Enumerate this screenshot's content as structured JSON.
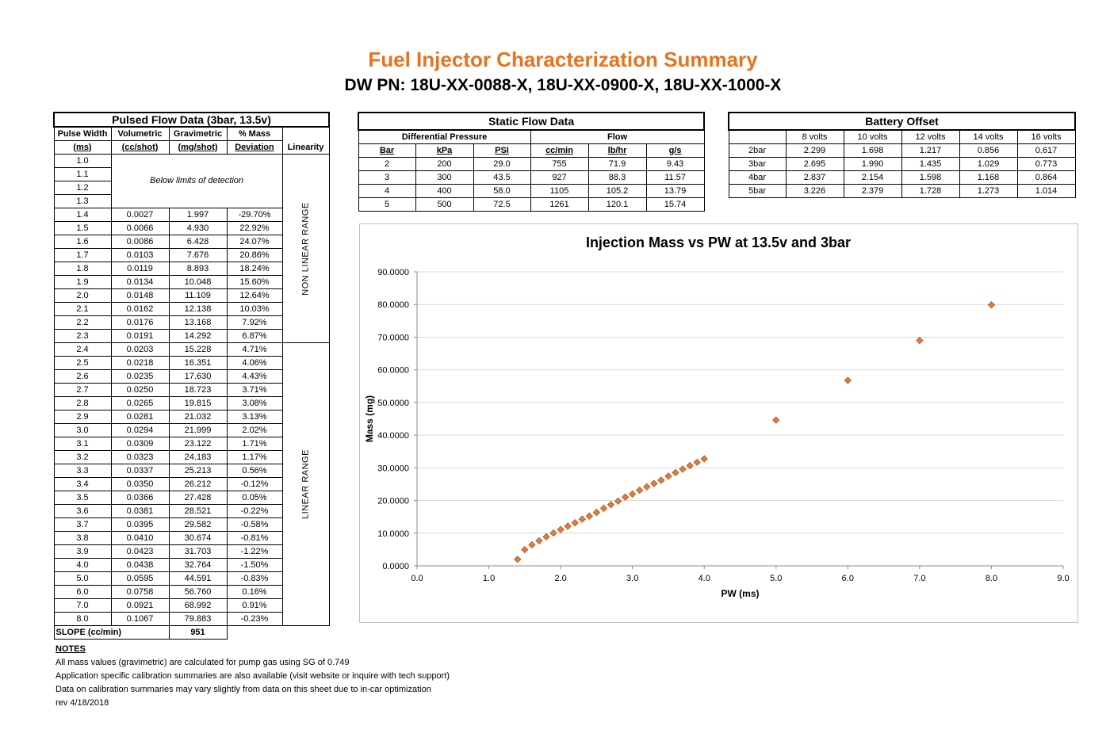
{
  "title": "Fuel Injector Characterization Summary",
  "subtitle": "DW PN: 18U-XX-0088-X, 18U-XX-0900-X, 18U-XX-1000-X",
  "pulsed": {
    "title": "Pulsed Flow Data (3bar, 13.5v)",
    "headers": {
      "pw1": "Pulse Width",
      "pw2": "(ms)",
      "vol1": "Volumetric",
      "vol2": "(cc/shot)",
      "grav1": "Gravimetric",
      "grav2": "(mg/shot)",
      "dev1": "% Mass",
      "dev2": "Deviation",
      "lin": "Linearity"
    },
    "below_limits": "Below limits of detection",
    "nonlinear_label": "NON LINEAR RANGE",
    "linear_label": "LINEAR RANGE",
    "rows": [
      {
        "pw": "1.0",
        "vol": "",
        "grav": "",
        "dev": ""
      },
      {
        "pw": "1.1",
        "vol": "",
        "grav": "",
        "dev": ""
      },
      {
        "pw": "1.2",
        "vol": "",
        "grav": "",
        "dev": ""
      },
      {
        "pw": "1.3",
        "vol": "",
        "grav": "",
        "dev": ""
      },
      {
        "pw": "1.4",
        "vol": "0.0027",
        "grav": "1.997",
        "dev": "-29.70%"
      },
      {
        "pw": "1.5",
        "vol": "0.0066",
        "grav": "4.930",
        "dev": "22.92%"
      },
      {
        "pw": "1.6",
        "vol": "0.0086",
        "grav": "6.428",
        "dev": "24.07%"
      },
      {
        "pw": "1.7",
        "vol": "0.0103",
        "grav": "7.676",
        "dev": "20.86%"
      },
      {
        "pw": "1.8",
        "vol": "0.0119",
        "grav": "8.893",
        "dev": "18.24%"
      },
      {
        "pw": "1.9",
        "vol": "0.0134",
        "grav": "10.048",
        "dev": "15.60%"
      },
      {
        "pw": "2.0",
        "vol": "0.0148",
        "grav": "11.109",
        "dev": "12.64%"
      },
      {
        "pw": "2.1",
        "vol": "0.0162",
        "grav": "12.138",
        "dev": "10.03%"
      },
      {
        "pw": "2.2",
        "vol": "0.0176",
        "grav": "13.168",
        "dev": "7.92%"
      },
      {
        "pw": "2.3",
        "vol": "0.0191",
        "grav": "14.292",
        "dev": "6.87%"
      },
      {
        "pw": "2.4",
        "vol": "0.0203",
        "grav": "15.228",
        "dev": "4.71%"
      },
      {
        "pw": "2.5",
        "vol": "0.0218",
        "grav": "16.351",
        "dev": "4.06%"
      },
      {
        "pw": "2.6",
        "vol": "0.0235",
        "grav": "17.630",
        "dev": "4.43%"
      },
      {
        "pw": "2.7",
        "vol": "0.0250",
        "grav": "18.723",
        "dev": "3.71%"
      },
      {
        "pw": "2.8",
        "vol": "0.0265",
        "grav": "19.815",
        "dev": "3.08%"
      },
      {
        "pw": "2.9",
        "vol": "0.0281",
        "grav": "21.032",
        "dev": "3.13%"
      },
      {
        "pw": "3.0",
        "vol": "0.0294",
        "grav": "21.999",
        "dev": "2.02%"
      },
      {
        "pw": "3.1",
        "vol": "0.0309",
        "grav": "23.122",
        "dev": "1.71%"
      },
      {
        "pw": "3.2",
        "vol": "0.0323",
        "grav": "24.183",
        "dev": "1.17%"
      },
      {
        "pw": "3.3",
        "vol": "0.0337",
        "grav": "25.213",
        "dev": "0.56%"
      },
      {
        "pw": "3.4",
        "vol": "0.0350",
        "grav": "26.212",
        "dev": "-0.12%"
      },
      {
        "pw": "3.5",
        "vol": "0.0366",
        "grav": "27.428",
        "dev": "0.05%"
      },
      {
        "pw": "3.6",
        "vol": "0.0381",
        "grav": "28.521",
        "dev": "-0.22%"
      },
      {
        "pw": "3.7",
        "vol": "0.0395",
        "grav": "29.582",
        "dev": "-0.58%"
      },
      {
        "pw": "3.8",
        "vol": "0.0410",
        "grav": "30.674",
        "dev": "-0.81%"
      },
      {
        "pw": "3.9",
        "vol": "0.0423",
        "grav": "31.703",
        "dev": "-1.22%"
      },
      {
        "pw": "4.0",
        "vol": "0.0438",
        "grav": "32.764",
        "dev": "-1.50%"
      },
      {
        "pw": "5.0",
        "vol": "0.0595",
        "grav": "44.591",
        "dev": "-0.83%"
      },
      {
        "pw": "6.0",
        "vol": "0.0758",
        "grav": "56.760",
        "dev": "0.16%"
      },
      {
        "pw": "7.0",
        "vol": "0.0921",
        "grav": "68.992",
        "dev": "0.91%"
      },
      {
        "pw": "8.0",
        "vol": "0.1067",
        "grav": "79.883",
        "dev": "-0.23%"
      }
    ],
    "slope_label": "SLOPE (cc/min)",
    "slope_value": "951"
  },
  "static": {
    "title": "Static Flow Data",
    "group1": "Differential Pressure",
    "group2": "Flow",
    "headers": [
      "Bar",
      "kPa",
      "PSI",
      "cc/min",
      "lb/hr",
      "g/s"
    ],
    "rows": [
      [
        "2",
        "200",
        "29.0",
        "755",
        "71.9",
        "9.43"
      ],
      [
        "3",
        "300",
        "43.5",
        "927",
        "88.3",
        "11.57"
      ],
      [
        "4",
        "400",
        "58.0",
        "1105",
        "105.2",
        "13.79"
      ],
      [
        "5",
        "500",
        "72.5",
        "1261",
        "120.1",
        "15.74"
      ]
    ]
  },
  "battery": {
    "title": "Battery Offset",
    "headers": [
      "",
      "8 volts",
      "10 volts",
      "12 volts",
      "14 volts",
      "16 volts"
    ],
    "rows": [
      [
        "2bar",
        "2.299",
        "1.698",
        "1.217",
        "0.856",
        "0.617"
      ],
      [
        "3bar",
        "2.695",
        "1.990",
        "1.435",
        "1.029",
        "0.773"
      ],
      [
        "4bar",
        "2.837",
        "2.154",
        "1.598",
        "1.168",
        "0.864"
      ],
      [
        "5bar",
        "3.226",
        "2.379",
        "1.728",
        "1.273",
        "1.014"
      ]
    ]
  },
  "chart_data": {
    "type": "scatter",
    "title": "Injection Mass vs PW at 13.5v and 3bar",
    "xlabel": "PW (ms)",
    "ylabel": "Mass (mg)",
    "xlim": [
      0,
      9
    ],
    "ylim": [
      0,
      90
    ],
    "x_ticks": [
      "0.0",
      "1.0",
      "2.0",
      "3.0",
      "4.0",
      "5.0",
      "6.0",
      "7.0",
      "8.0",
      "9.0"
    ],
    "y_ticks": [
      "0.0000",
      "10.0000",
      "20.0000",
      "30.0000",
      "40.0000",
      "50.0000",
      "60.0000",
      "70.0000",
      "80.0000",
      "90.0000"
    ],
    "grid": "horizontal",
    "marker_color": "#E07B39",
    "points": [
      [
        1.4,
        1.997
      ],
      [
        1.5,
        4.93
      ],
      [
        1.6,
        6.428
      ],
      [
        1.7,
        7.676
      ],
      [
        1.8,
        8.893
      ],
      [
        1.9,
        10.048
      ],
      [
        2.0,
        11.109
      ],
      [
        2.1,
        12.138
      ],
      [
        2.2,
        13.168
      ],
      [
        2.3,
        14.292
      ],
      [
        2.4,
        15.228
      ],
      [
        2.5,
        16.351
      ],
      [
        2.6,
        17.63
      ],
      [
        2.7,
        18.723
      ],
      [
        2.8,
        19.815
      ],
      [
        2.9,
        21.032
      ],
      [
        3.0,
        21.999
      ],
      [
        3.1,
        23.122
      ],
      [
        3.2,
        24.183
      ],
      [
        3.3,
        25.213
      ],
      [
        3.4,
        26.212
      ],
      [
        3.5,
        27.428
      ],
      [
        3.6,
        28.521
      ],
      [
        3.7,
        29.582
      ],
      [
        3.8,
        30.674
      ],
      [
        3.9,
        31.703
      ],
      [
        4.0,
        32.764
      ],
      [
        5.0,
        44.591
      ],
      [
        6.0,
        56.76
      ],
      [
        7.0,
        68.992
      ],
      [
        8.0,
        79.883
      ]
    ]
  },
  "notes": {
    "heading": "NOTES",
    "lines": [
      "All mass values (gravimetric) are calculated for pump gas using SG of 0.749",
      "Application specific calibration summaries are also available (visit website or inquire with tech support)",
      "Data on calibration summaries may vary slightly from data on this sheet due to in-car optimization",
      "rev 4/18/2018"
    ]
  }
}
